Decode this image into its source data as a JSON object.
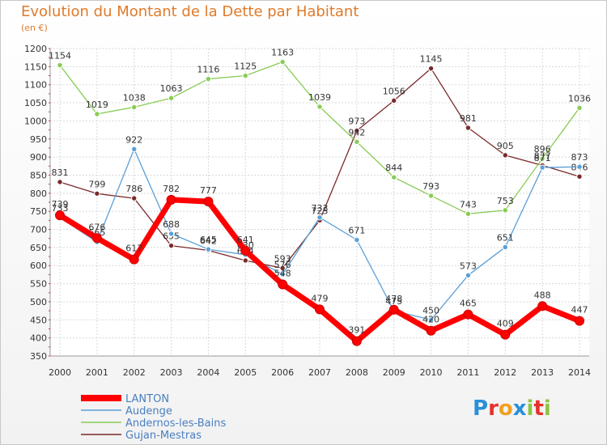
{
  "chart_data": {
    "type": "line",
    "title": "Evolution du Montant de la Dette par Habitant",
    "subtitle": "(en €)",
    "x": [
      "2000",
      "2001",
      "2002",
      "2003",
      "2004",
      "2005",
      "2006",
      "2007",
      "2008",
      "2009",
      "2010",
      "2011",
      "2012",
      "2013",
      "2014"
    ],
    "ylim": [
      350,
      1200
    ],
    "yticks": [
      350,
      400,
      450,
      500,
      550,
      600,
      650,
      700,
      750,
      800,
      850,
      900,
      950,
      1000,
      1050,
      1100,
      1150,
      1200
    ],
    "grid": true,
    "legend_position": "bottom-left",
    "series": [
      {
        "name": "LANTON",
        "color": "#ff0000",
        "values": [
          739,
          676,
          617,
          782,
          777,
          641,
          548,
          479,
          391,
          478,
          420,
          465,
          409,
          488,
          447
        ]
      },
      {
        "name": "Audenge",
        "color": "#5b9fd6",
        "values": [
          733,
          665,
          922,
          688,
          645,
          630,
          576,
          733,
          671,
          475,
          450,
          573,
          651,
          871,
          873
        ]
      },
      {
        "name": "Andernos-les-Bains",
        "color": "#88cc55",
        "values": [
          1154,
          1019,
          1038,
          1063,
          1116,
          1125,
          1163,
          1039,
          942,
          844,
          793,
          743,
          753,
          896,
          1036
        ]
      },
      {
        "name": "Gujan-Mestras",
        "color": "#7a2a2a",
        "values": [
          831,
          799,
          786,
          655,
          642,
          614,
          593,
          725,
          973,
          1056,
          1145,
          981,
          905,
          877,
          846
        ]
      }
    ]
  },
  "logo": {
    "letters": [
      "P",
      "r",
      "o",
      "x",
      "i",
      "t",
      "i"
    ],
    "colors": [
      "#2a8fd8",
      "#e8302a",
      "#f0a020",
      "#2a8fd8",
      "#8cc63f",
      "#e8302a",
      "#8cc63f"
    ]
  }
}
